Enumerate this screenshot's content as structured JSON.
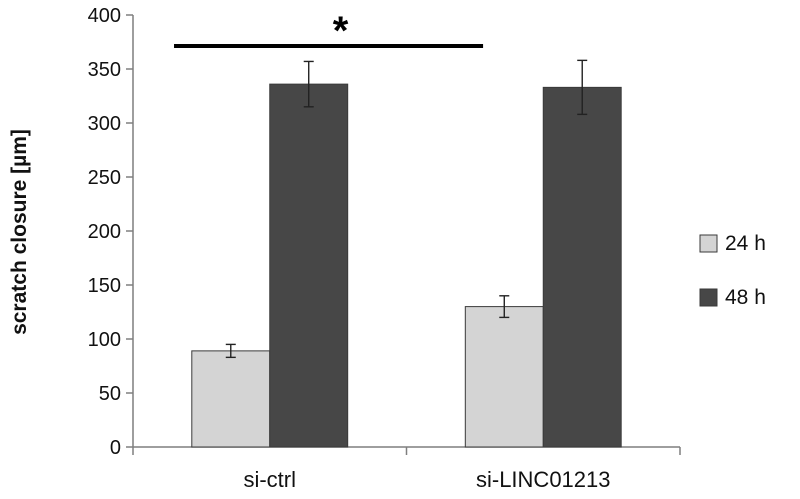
{
  "chart_data": {
    "type": "bar",
    "title": "",
    "xlabel": "",
    "ylabel": "scratch closure [µm]",
    "ylim": [
      0,
      400
    ],
    "yticks": [
      0,
      50,
      100,
      150,
      200,
      250,
      300,
      350,
      400
    ],
    "grid": false,
    "legend_position": "right",
    "categories": [
      "si-ctrl",
      "si-LINC01213"
    ],
    "series": [
      {
        "name": "24 h",
        "color": "#d4d4d4",
        "values": [
          89,
          130
        ],
        "errors": [
          6,
          10
        ]
      },
      {
        "name": "48 h",
        "color": "#474747",
        "values": [
          336,
          333
        ],
        "errors": [
          21,
          25
        ]
      }
    ],
    "annotations": [
      {
        "text": "*",
        "type": "significance-bracket"
      }
    ]
  }
}
